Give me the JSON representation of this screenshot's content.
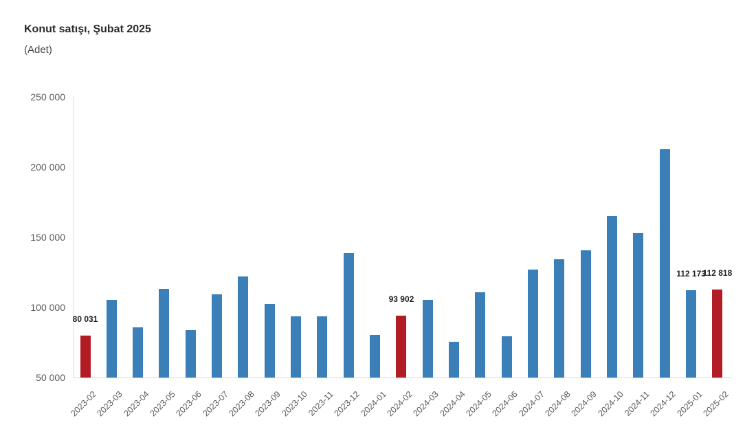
{
  "header": {
    "title": "Konut satışı, Şubat 2025",
    "subtitle": "(Adet)"
  },
  "chart_data": {
    "type": "bar",
    "title": "Konut satışı, Şubat 2025",
    "unit_label": "(Adet)",
    "categories": [
      "2023-02",
      "2023-03",
      "2023-04",
      "2023-05",
      "2023-06",
      "2023-07",
      "2023-08",
      "2023-09",
      "2023-10",
      "2023-11",
      "2023-12",
      "2024-01",
      "2024-02",
      "2024-03",
      "2024-04",
      "2024-05",
      "2024-06",
      "2024-07",
      "2024-08",
      "2024-09",
      "2024-10",
      "2024-11",
      "2024-12",
      "2025-01",
      "2025-02"
    ],
    "values": [
      80031,
      105476,
      85652,
      113404,
      83636,
      109548,
      122091,
      102656,
      93761,
      93558,
      138577,
      80308,
      93902,
      105394,
      75569,
      110588,
      79313,
      127088,
      134155,
      140919,
      165138,
      152818,
      212637,
      112173,
      112818
    ],
    "highlight_indices": [
      0,
      12,
      24
    ],
    "data_labels": [
      {
        "index": 0,
        "text": "80 031"
      },
      {
        "index": 12,
        "text": "93 902"
      },
      {
        "index": 23,
        "text": "112 173"
      },
      {
        "index": 24,
        "text": "112 818"
      }
    ],
    "ylim": [
      50000,
      250000
    ],
    "ytick_step": 50000,
    "ytick_labels": [
      "50 000",
      "100 000",
      "150 000",
      "200 000",
      "250 000"
    ],
    "xlabel": "",
    "ylabel": "",
    "grid": false,
    "legend": false,
    "colors": {
      "bar": "#3A7FB8",
      "highlight": "#B21C24",
      "axis_line": "#D9D9D9",
      "tick_text": "#595959",
      "value_label_text": "#1F1F1F",
      "title_text": "#2B2B2B",
      "subtitle_text": "#444444",
      "background": "#FFFFFF"
    }
  }
}
